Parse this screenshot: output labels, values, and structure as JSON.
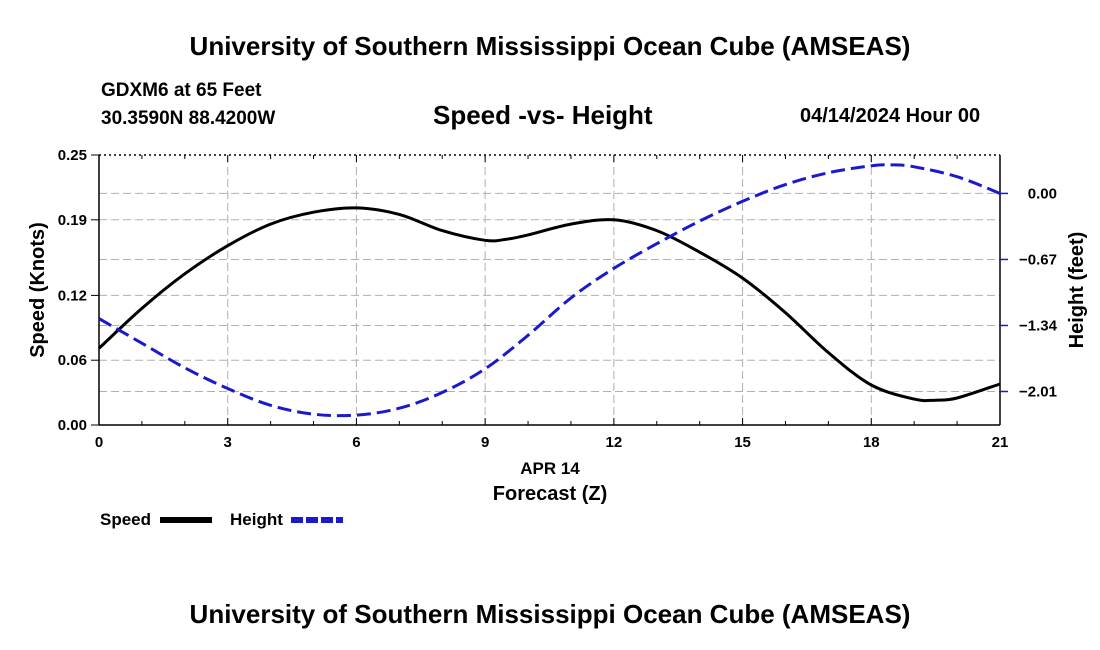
{
  "header": {
    "title": "University of Southern Mississippi Ocean Cube (AMSEAS)",
    "station": "GDXM6 at 65 Feet",
    "coords": "30.3590N  88.4200W",
    "subtitle": "Speed -vs- Height",
    "datetime": "04/14/2024 Hour 00"
  },
  "footer": {
    "title": "University of Southern Mississippi Ocean Cube (AMSEAS)"
  },
  "chart_data": {
    "type": "line",
    "xlabel_date": "APR 14",
    "xlabel": "Forecast (Z)",
    "ylabel": "Speed (Knots)",
    "y2label": "Height (feet)",
    "xlim": [
      0,
      21
    ],
    "xticks": [
      0,
      3,
      6,
      9,
      12,
      15,
      18,
      21
    ],
    "ylim": [
      0,
      0.25
    ],
    "yticks": [
      0.0,
      0.06,
      0.12,
      0.19,
      0.25
    ],
    "ytick_labels": [
      "0.00",
      "0.06",
      "0.12",
      "0.19",
      "0.25"
    ],
    "y2lim": [
      -2.35,
      0.39
    ],
    "y2ticks": [
      0.0,
      -0.67,
      -1.34,
      -2.01
    ],
    "y2tick_labels": [
      "0.00",
      "−0.67",
      "−1.34",
      "−2.01"
    ],
    "grid": true,
    "series": [
      {
        "name": "Speed",
        "axis": "left",
        "color": "#000000",
        "dash": "solid",
        "x": [
          0,
          1,
          2,
          3,
          4,
          5,
          6,
          7,
          8,
          9,
          9.5,
          10,
          11,
          12,
          13,
          14,
          15,
          16,
          17,
          18,
          19,
          19.5,
          20,
          21
        ],
        "values": [
          0.071,
          0.108,
          0.14,
          0.166,
          0.186,
          0.197,
          0.201,
          0.195,
          0.18,
          0.171,
          0.172,
          0.176,
          0.186,
          0.19,
          0.18,
          0.16,
          0.136,
          0.104,
          0.067,
          0.037,
          0.024,
          0.023,
          0.025,
          0.038
        ]
      },
      {
        "name": "Height",
        "axis": "right",
        "color": "#1a1acc",
        "dash": "dashed",
        "x": [
          0,
          1,
          2,
          3,
          4,
          5,
          6,
          7,
          8,
          9,
          10,
          11,
          12,
          13,
          14,
          15,
          16,
          17,
          18,
          18.5,
          19,
          20,
          21
        ],
        "values": [
          -1.27,
          -1.52,
          -1.77,
          -1.98,
          -2.15,
          -2.24,
          -2.25,
          -2.18,
          -2.02,
          -1.78,
          -1.44,
          -1.06,
          -0.76,
          -0.51,
          -0.28,
          -0.08,
          0.09,
          0.21,
          0.28,
          0.29,
          0.27,
          0.17,
          0.0
        ]
      }
    ],
    "legend": [
      {
        "label": "Speed",
        "color": "#000000",
        "style": "solid"
      },
      {
        "label": "Height",
        "color": "#1a1acc",
        "style": "dashed"
      }
    ]
  }
}
